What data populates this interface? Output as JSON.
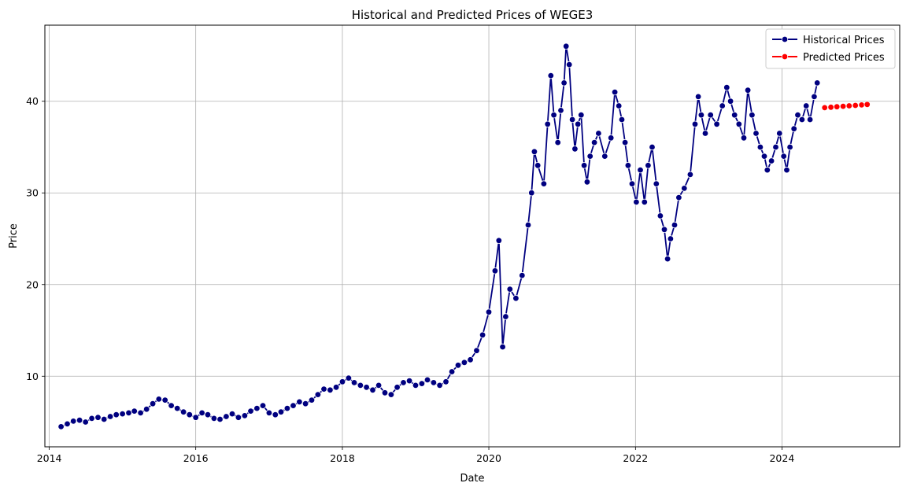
{
  "chart_data": {
    "type": "line",
    "title": "Historical and Predicted Prices of WEGE3",
    "xlabel": "Date",
    "ylabel": "Price",
    "xlim": [
      "2013-12-10",
      "2025-08-10"
    ],
    "ylim": [
      2.3,
      48.3
    ],
    "x_ticks": [
      "2014",
      "2016",
      "2018",
      "2020",
      "2022",
      "2024"
    ],
    "y_ticks": [
      10,
      20,
      30,
      40
    ],
    "grid": true,
    "legend": "top-right",
    "series": [
      {
        "name": "Historical Prices",
        "color": "#000080",
        "marker": "circle",
        "points": [
          [
            "2014-03-01",
            4.5
          ],
          [
            "2014-04-01",
            4.8
          ],
          [
            "2014-05-01",
            5.1
          ],
          [
            "2014-06-01",
            5.2
          ],
          [
            "2014-07-01",
            5.0
          ],
          [
            "2014-08-01",
            5.4
          ],
          [
            "2014-09-01",
            5.5
          ],
          [
            "2014-10-01",
            5.3
          ],
          [
            "2014-11-01",
            5.6
          ],
          [
            "2014-12-01",
            5.8
          ],
          [
            "2015-01-01",
            5.9
          ],
          [
            "2015-02-01",
            6.0
          ],
          [
            "2015-03-01",
            6.2
          ],
          [
            "2015-04-01",
            6.0
          ],
          [
            "2015-05-01",
            6.4
          ],
          [
            "2015-06-01",
            7.0
          ],
          [
            "2015-07-01",
            7.5
          ],
          [
            "2015-08-01",
            7.4
          ],
          [
            "2015-09-01",
            6.8
          ],
          [
            "2015-10-01",
            6.5
          ],
          [
            "2015-11-01",
            6.1
          ],
          [
            "2015-12-01",
            5.8
          ],
          [
            "2016-01-01",
            5.5
          ],
          [
            "2016-02-01",
            6.0
          ],
          [
            "2016-03-01",
            5.8
          ],
          [
            "2016-04-01",
            5.4
          ],
          [
            "2016-05-01",
            5.3
          ],
          [
            "2016-06-01",
            5.6
          ],
          [
            "2016-07-01",
            5.9
          ],
          [
            "2016-08-01",
            5.5
          ],
          [
            "2016-09-01",
            5.7
          ],
          [
            "2016-10-01",
            6.2
          ],
          [
            "2016-11-01",
            6.5
          ],
          [
            "2016-12-01",
            6.8
          ],
          [
            "2017-01-01",
            6.0
          ],
          [
            "2017-02-01",
            5.8
          ],
          [
            "2017-03-01",
            6.1
          ],
          [
            "2017-04-01",
            6.5
          ],
          [
            "2017-05-01",
            6.8
          ],
          [
            "2017-06-01",
            7.2
          ],
          [
            "2017-07-01",
            7.0
          ],
          [
            "2017-08-01",
            7.4
          ],
          [
            "2017-09-01",
            8.0
          ],
          [
            "2017-10-01",
            8.6
          ],
          [
            "2017-11-01",
            8.5
          ],
          [
            "2017-12-01",
            8.8
          ],
          [
            "2018-01-01",
            9.4
          ],
          [
            "2018-02-01",
            9.8
          ],
          [
            "2018-03-01",
            9.3
          ],
          [
            "2018-04-01",
            9.0
          ],
          [
            "2018-05-01",
            8.8
          ],
          [
            "2018-06-01",
            8.5
          ],
          [
            "2018-07-01",
            9.0
          ],
          [
            "2018-08-01",
            8.2
          ],
          [
            "2018-09-01",
            8.0
          ],
          [
            "2018-10-01",
            8.8
          ],
          [
            "2018-11-01",
            9.3
          ],
          [
            "2018-12-01",
            9.5
          ],
          [
            "2019-01-01",
            9.0
          ],
          [
            "2019-02-01",
            9.2
          ],
          [
            "2019-03-01",
            9.6
          ],
          [
            "2019-04-01",
            9.3
          ],
          [
            "2019-05-01",
            9.0
          ],
          [
            "2019-06-01",
            9.4
          ],
          [
            "2019-07-01",
            10.5
          ],
          [
            "2019-08-01",
            11.2
          ],
          [
            "2019-09-01",
            11.5
          ],
          [
            "2019-10-01",
            11.8
          ],
          [
            "2019-11-01",
            12.8
          ],
          [
            "2019-12-01",
            14.5
          ],
          [
            "2020-01-01",
            17.0
          ],
          [
            "2020-02-01",
            21.5
          ],
          [
            "2020-02-20",
            24.8
          ],
          [
            "2020-03-10",
            13.2
          ],
          [
            "2020-03-25",
            16.5
          ],
          [
            "2020-04-15",
            19.5
          ],
          [
            "2020-05-15",
            18.5
          ],
          [
            "2020-06-15",
            21.0
          ],
          [
            "2020-07-15",
            26.5
          ],
          [
            "2020-08-01",
            30.0
          ],
          [
            "2020-08-15",
            34.5
          ],
          [
            "2020-09-01",
            33.0
          ],
          [
            "2020-10-01",
            31.0
          ],
          [
            "2020-10-20",
            37.5
          ],
          [
            "2020-11-05",
            42.8
          ],
          [
            "2020-11-20",
            38.5
          ],
          [
            "2020-12-10",
            35.5
          ],
          [
            "2020-12-25",
            39.0
          ],
          [
            "2021-01-10",
            42.0
          ],
          [
            "2021-01-20",
            46.0
          ],
          [
            "2021-02-05",
            44.0
          ],
          [
            "2021-02-20",
            38.0
          ],
          [
            "2021-03-05",
            34.8
          ],
          [
            "2021-03-20",
            37.5
          ],
          [
            "2021-04-05",
            38.5
          ],
          [
            "2021-04-20",
            33.0
          ],
          [
            "2021-05-05",
            31.2
          ],
          [
            "2021-05-20",
            34.0
          ],
          [
            "2021-06-10",
            35.5
          ],
          [
            "2021-07-01",
            36.5
          ],
          [
            "2021-08-01",
            34.0
          ],
          [
            "2021-09-01",
            36.0
          ],
          [
            "2021-09-20",
            41.0
          ],
          [
            "2021-10-10",
            39.5
          ],
          [
            "2021-10-25",
            38.0
          ],
          [
            "2021-11-10",
            35.5
          ],
          [
            "2021-11-25",
            33.0
          ],
          [
            "2021-12-15",
            31.0
          ],
          [
            "2022-01-05",
            29.0
          ],
          [
            "2022-01-25",
            32.5
          ],
          [
            "2022-02-15",
            29.0
          ],
          [
            "2022-03-05",
            33.0
          ],
          [
            "2022-03-25",
            35.0
          ],
          [
            "2022-04-15",
            31.0
          ],
          [
            "2022-05-05",
            27.5
          ],
          [
            "2022-05-25",
            26.0
          ],
          [
            "2022-06-10",
            22.8
          ],
          [
            "2022-06-25",
            25.0
          ],
          [
            "2022-07-15",
            26.5
          ],
          [
            "2022-08-05",
            29.5
          ],
          [
            "2022-09-01",
            30.5
          ],
          [
            "2022-10-01",
            32.0
          ],
          [
            "2022-10-25",
            37.5
          ],
          [
            "2022-11-10",
            40.5
          ],
          [
            "2022-11-25",
            38.5
          ],
          [
            "2022-12-15",
            36.5
          ],
          [
            "2023-01-10",
            38.5
          ],
          [
            "2023-02-10",
            37.5
          ],
          [
            "2023-03-10",
            39.5
          ],
          [
            "2023-04-01",
            41.5
          ],
          [
            "2023-04-20",
            40.0
          ],
          [
            "2023-05-10",
            38.5
          ],
          [
            "2023-06-01",
            37.5
          ],
          [
            "2023-06-25",
            36.0
          ],
          [
            "2023-07-15",
            41.2
          ],
          [
            "2023-08-05",
            38.5
          ],
          [
            "2023-08-25",
            36.5
          ],
          [
            "2023-09-15",
            35.0
          ],
          [
            "2023-10-05",
            34.0
          ],
          [
            "2023-10-20",
            32.5
          ],
          [
            "2023-11-10",
            33.5
          ],
          [
            "2023-12-01",
            35.0
          ],
          [
            "2023-12-20",
            36.5
          ],
          [
            "2024-01-10",
            34.0
          ],
          [
            "2024-01-25",
            32.5
          ],
          [
            "2024-02-10",
            35.0
          ],
          [
            "2024-03-01",
            37.0
          ],
          [
            "2024-03-20",
            38.5
          ],
          [
            "2024-04-10",
            38.0
          ],
          [
            "2024-05-01",
            39.5
          ],
          [
            "2024-05-20",
            38.0
          ],
          [
            "2024-06-10",
            40.5
          ],
          [
            "2024-06-25",
            42.0
          ]
        ]
      },
      {
        "name": "Predicted Prices",
        "color": "#ff0000",
        "marker": "circle",
        "points": [
          [
            "2024-08-01",
            39.3
          ],
          [
            "2024-09-01",
            39.35
          ],
          [
            "2024-10-01",
            39.4
          ],
          [
            "2024-11-01",
            39.45
          ],
          [
            "2024-12-01",
            39.5
          ],
          [
            "2025-01-01",
            39.55
          ],
          [
            "2025-02-01",
            39.6
          ],
          [
            "2025-03-01",
            39.65
          ]
        ]
      }
    ]
  }
}
